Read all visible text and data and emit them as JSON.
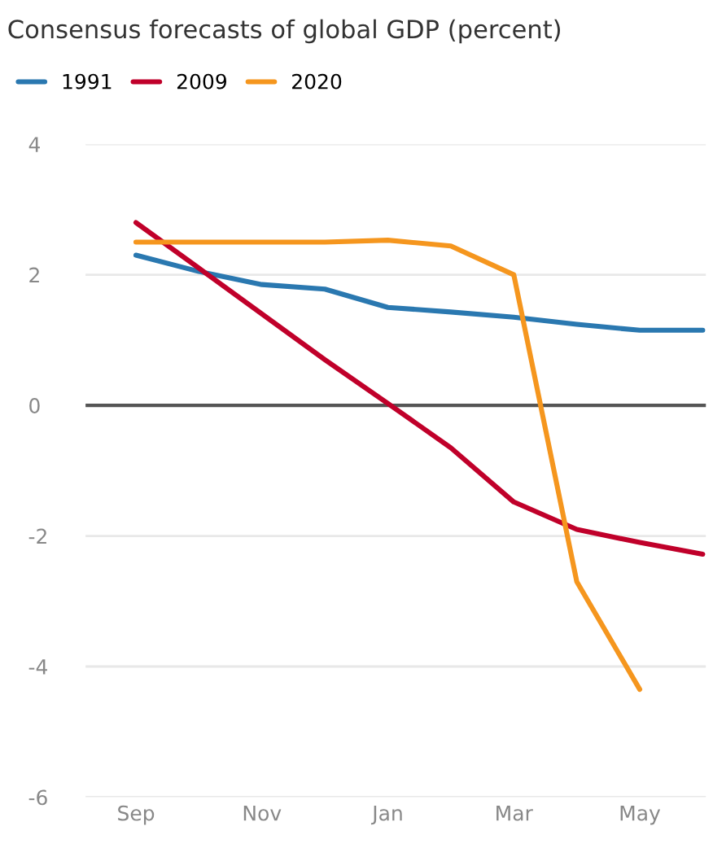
{
  "chart_data": {
    "type": "line",
    "title": "Consensus forecasts of global GDP (percent)",
    "categories": [
      "Sep",
      null,
      "Nov",
      null,
      "Jan",
      null,
      "Mar",
      null,
      "May",
      null
    ],
    "series": [
      {
        "name": "1991",
        "color": "#2a78b0",
        "values": [
          2.3,
          2.05,
          1.85,
          1.78,
          1.5,
          1.43,
          1.35,
          1.24,
          1.15,
          1.15
        ]
      },
      {
        "name": "2009",
        "color": "#c0002a",
        "values": [
          2.8,
          2.1,
          1.4,
          0.7,
          0.03,
          -0.65,
          -1.48,
          -1.9,
          -2.1,
          -2.28
        ]
      },
      {
        "name": "2020",
        "color": "#f5961e",
        "values": [
          2.5,
          2.5,
          2.5,
          2.5,
          2.53,
          2.44,
          2.0,
          -2.7,
          -4.35,
          null
        ]
      }
    ],
    "ylim": [
      -6,
      4
    ],
    "yticks": [
      -6,
      -4,
      -2,
      0,
      2,
      4
    ],
    "grid": "y",
    "legend": "top left",
    "ref_lines": [
      {
        "axis": "y",
        "value": 0,
        "color": "#555555"
      }
    ]
  }
}
